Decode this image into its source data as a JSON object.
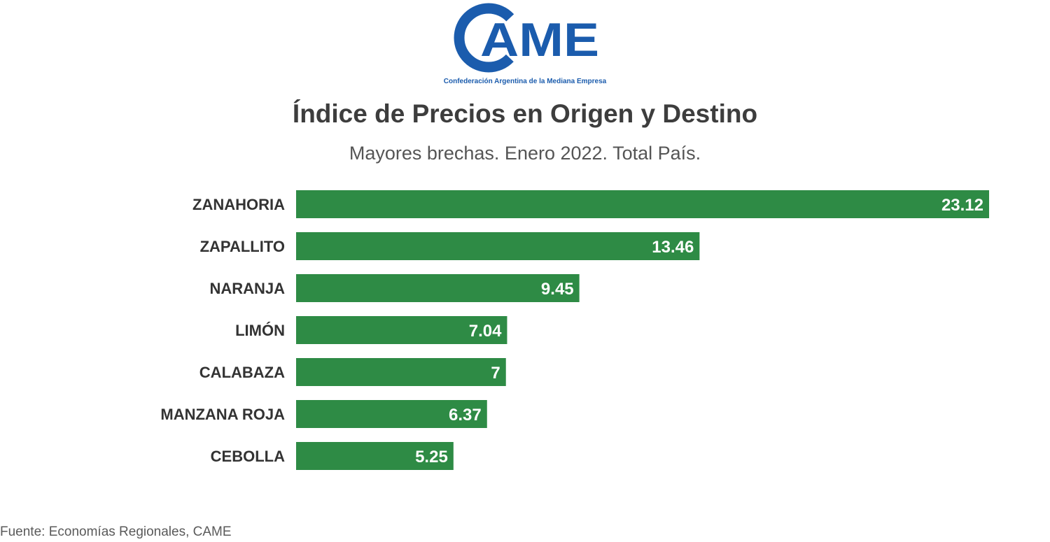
{
  "logo": {
    "text": "CAME",
    "tagline": "Confederación Argentina de la Mediana Empresa",
    "color": "#1b5cad"
  },
  "header": {
    "title": "Índice de Precios en Origen y Destino",
    "subtitle": "Mayores brechas. Enero 2022. Total País."
  },
  "chart_data": {
    "type": "bar",
    "orientation": "horizontal",
    "categories": [
      "ZANAHORIA",
      "ZAPALLITO",
      "NARANJA",
      "LIMÓN",
      "CALABAZA",
      "MANZANA ROJA",
      "CEBOLLA"
    ],
    "values": [
      23.12,
      13.46,
      9.45,
      7.04,
      7,
      6.37,
      5.25
    ],
    "value_labels": [
      "23.12",
      "13.46",
      "9.45",
      "7.04",
      "7",
      "6.37",
      "5.25"
    ],
    "bar_color": "#2e8b45",
    "grid": false,
    "legend": "none"
  },
  "footer": {
    "source": "Fuente: Economías Regionales, CAME"
  }
}
